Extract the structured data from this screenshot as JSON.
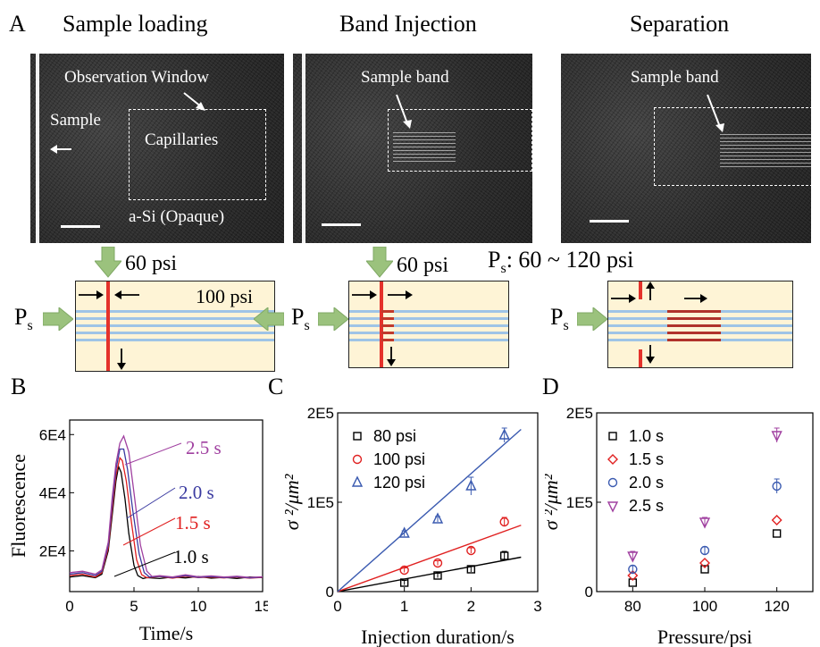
{
  "panel_labels": {
    "a": "A",
    "b": "B",
    "c": "C",
    "d": "D"
  },
  "panel_a": {
    "titles": [
      "Sample loading",
      "Band Injection",
      "Separation"
    ],
    "img1": {
      "observation": "Observation Window",
      "sample": "Sample",
      "capillaries": "Capillaries",
      "asi": "a-Si (Opaque)"
    },
    "img2": {
      "band": "Sample band"
    },
    "img3": {
      "band": "Sample band"
    },
    "schem1": {
      "top": "60 psi",
      "right": "100 psi",
      "ps": "P",
      "ps_sub": "s"
    },
    "schem2": {
      "top": "60 psi",
      "ps": "P",
      "ps_sub": "s"
    },
    "schem3": {
      "header_p": "P",
      "header_sub": "s",
      "header_rest": ": 60 ~ 120 psi",
      "ps": "P",
      "ps_sub": "s"
    },
    "colors": {
      "cream": "#fef4d6",
      "channel": "#9ec4e6",
      "red": "#e4322b",
      "arrow_green": "#9bc27d"
    }
  },
  "chart_data": [
    {
      "type": "line",
      "panel": "B",
      "xlabel": "Time/s",
      "ylabel": "Fluorescence",
      "xlim": [
        0,
        15
      ],
      "ylim": [
        6000,
        65000
      ],
      "xticks": [
        "0",
        "5",
        "10",
        "15"
      ],
      "yticks": [
        "2E4",
        "4E4",
        "6E4"
      ],
      "series": [
        {
          "name": "1.0 s",
          "color": "#000000",
          "x": [
            0,
            1,
            2,
            2.5,
            3,
            3.3,
            3.6,
            3.8,
            4,
            4.3,
            4.6,
            5,
            5.3,
            5.7,
            6,
            7,
            8,
            9,
            10,
            11,
            12,
            13,
            14,
            15
          ],
          "y": [
            11000,
            11500,
            10800,
            12000,
            20000,
            32000,
            44000,
            49000,
            47000,
            38000,
            26000,
            15000,
            11500,
            10500,
            10800,
            10500,
            11000,
            10700,
            11200,
            10600,
            10900,
            10500,
            11000,
            10800
          ]
        },
        {
          "name": "1.5 s",
          "color": "#e02020",
          "x": [
            0,
            1,
            2,
            2.5,
            3,
            3.3,
            3.6,
            3.9,
            4.1,
            4.4,
            4.8,
            5.2,
            5.6,
            6,
            7,
            8,
            9,
            10,
            11,
            12,
            13,
            14,
            15
          ],
          "y": [
            11500,
            12000,
            11000,
            12500,
            21000,
            34000,
            46000,
            52000,
            51000,
            44000,
            30000,
            17000,
            11800,
            10800,
            11200,
            10600,
            11300,
            10800,
            11000,
            10700,
            11000,
            10600,
            10900
          ]
        },
        {
          "name": "2.0 s",
          "color": "#3a3aa0",
          "x": [
            0,
            1,
            2,
            2.5,
            3,
            3.3,
            3.6,
            3.9,
            4.2,
            4.5,
            4.9,
            5.4,
            5.8,
            6.2,
            7,
            8,
            9,
            10,
            11,
            12,
            13,
            14,
            15
          ],
          "y": [
            12000,
            12500,
            11500,
            13000,
            22000,
            36000,
            48000,
            55000,
            55000,
            48000,
            34000,
            19000,
            12500,
            11000,
            11300,
            10800,
            11500,
            10900,
            11200,
            10800,
            11100,
            10700,
            11000
          ]
        },
        {
          "name": "2.5 s",
          "color": "#a040a0",
          "x": [
            0,
            1,
            2,
            2.5,
            3,
            3.3,
            3.6,
            3.9,
            4.2,
            4.6,
            5,
            5.5,
            6,
            6.4,
            7,
            8,
            9,
            10,
            11,
            12,
            13,
            14,
            15
          ],
          "y": [
            12500,
            13000,
            12000,
            13500,
            23000,
            38000,
            50000,
            57000,
            59500,
            54000,
            40000,
            22000,
            13000,
            11200,
            11500,
            11000,
            11800,
            11100,
            11400,
            11000,
            11300,
            10900,
            11100
          ]
        }
      ],
      "annotations": [
        "2.5 s",
        "2.0 s",
        "1.5 s",
        "1.0 s"
      ]
    },
    {
      "type": "scatter",
      "panel": "C",
      "xlabel": "Injection duration/s",
      "ylabel": "σ ²/μm²",
      "xlim": [
        0,
        3
      ],
      "ylim": [
        0,
        200000
      ],
      "xticks": [
        "0",
        "1",
        "2",
        "3"
      ],
      "yticks": [
        "0",
        "1E5",
        "2E5"
      ],
      "series": [
        {
          "name": "80 psi",
          "color": "#000000",
          "marker": "square",
          "x": [
            1,
            1.5,
            2,
            2.5
          ],
          "y": [
            10000,
            18000,
            25000,
            40000
          ],
          "err": [
            2500,
            2500,
            3000,
            5000
          ],
          "fit_slope": 14000
        },
        {
          "name": "100 psi",
          "color": "#e02020",
          "marker": "circle",
          "x": [
            1,
            1.5,
            2,
            2.5
          ],
          "y": [
            24000,
            32000,
            46000,
            78000
          ],
          "err": [
            2500,
            2500,
            3000,
            5000
          ],
          "fit_slope": 27000
        },
        {
          "name": "120 psi",
          "color": "#3a5ab0",
          "marker": "triangle",
          "x": [
            1,
            1.5,
            2,
            2.5
          ],
          "y": [
            65000,
            81000,
            118000,
            175000
          ],
          "err": [
            3000,
            3000,
            10000,
            8000
          ],
          "fit_slope": 66000
        }
      ]
    },
    {
      "type": "scatter",
      "panel": "D",
      "xlabel": "Pressure/psi",
      "ylabel": "σ ²/μm²",
      "xlim": [
        70,
        130
      ],
      "ylim": [
        0,
        200000
      ],
      "xticks": [
        "80",
        "100",
        "120"
      ],
      "yticks": [
        "0",
        "1E5",
        "2E5"
      ],
      "series": [
        {
          "name": "1.0 s",
          "color": "#000000",
          "marker": "square",
          "x": [
            80,
            100,
            120
          ],
          "y": [
            10000,
            25000,
            65000
          ]
        },
        {
          "name": "1.5 s",
          "color": "#e02020",
          "marker": "diamond",
          "x": [
            80,
            100,
            120
          ],
          "y": [
            18000,
            32000,
            80000
          ]
        },
        {
          "name": "2.0 s",
          "color": "#3a5ab0",
          "marker": "circle",
          "x": [
            80,
            100,
            120
          ],
          "y": [
            25000,
            46000,
            118000
          ],
          "err": [
            4000,
            4000,
            8000
          ]
        },
        {
          "name": "2.5 s",
          "color": "#a040a0",
          "marker": "triangle-down",
          "x": [
            80,
            100,
            120
          ],
          "y": [
            40000,
            78000,
            175000
          ],
          "err": [
            5000,
            5000,
            8000
          ]
        }
      ]
    }
  ]
}
